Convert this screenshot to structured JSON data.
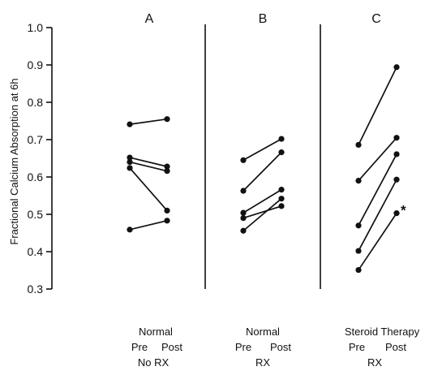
{
  "chart_data": {
    "type": "line",
    "ylabel": "Fractional Calcium Absorption at 6h",
    "ylim": [
      0.3,
      1.0
    ],
    "yticks": [
      "0.3",
      "0.4",
      "0.5",
      "0.6",
      "0.7",
      "0.8",
      "0.9",
      "1.0"
    ],
    "grid": false,
    "panels": [
      {
        "title": "A",
        "label_line1": "Normal",
        "x_labels": [
          "Pre",
          "Post"
        ],
        "label_line3": "No RX",
        "subjects": [
          {
            "pre": 0.741,
            "post": 0.755
          },
          {
            "pre": 0.652,
            "post": 0.628
          },
          {
            "pre": 0.64,
            "post": 0.616
          },
          {
            "pre": 0.624,
            "post": 0.51
          },
          {
            "pre": 0.459,
            "post": 0.483
          }
        ],
        "annotations": []
      },
      {
        "title": "B",
        "label_line1": "Normal",
        "x_labels": [
          "Pre",
          "Post"
        ],
        "label_line3": "RX",
        "subjects": [
          {
            "pre": 0.645,
            "post": 0.702
          },
          {
            "pre": 0.563,
            "post": 0.666
          },
          {
            "pre": 0.504,
            "post": 0.566
          },
          {
            "pre": 0.49,
            "post": 0.522
          },
          {
            "pre": 0.456,
            "post": 0.542
          }
        ],
        "annotations": []
      },
      {
        "title": "C",
        "label_line1": "Steroid Therapy",
        "x_labels": [
          "Pre",
          "Post"
        ],
        "label_line3": "RX",
        "subjects": [
          {
            "pre": 0.686,
            "post": 0.894
          },
          {
            "pre": 0.59,
            "post": 0.705
          },
          {
            "pre": 0.47,
            "post": 0.661
          },
          {
            "pre": 0.402,
            "post": 0.593
          },
          {
            "pre": 0.351,
            "post": 0.503
          }
        ],
        "annotations": [
          "*"
        ]
      }
    ]
  }
}
